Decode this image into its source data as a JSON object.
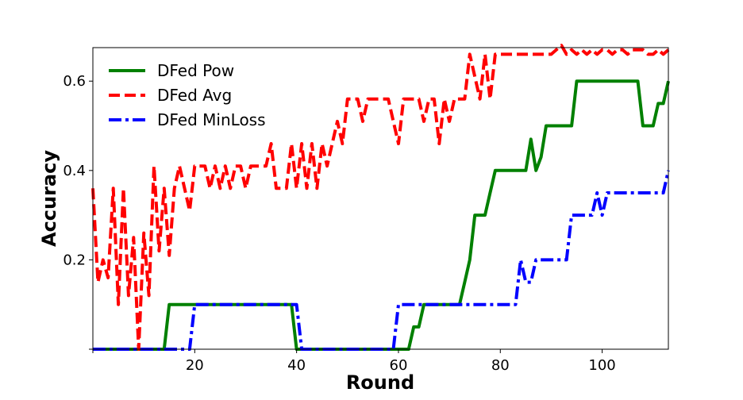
{
  "chart_data": {
    "type": "line",
    "title": "",
    "xlabel": "Round",
    "ylabel": "Accuracy",
    "xlim": [
      0,
      113
    ],
    "ylim": [
      0,
      0.675
    ],
    "xticks": [
      {
        "value": 20,
        "label": "20"
      },
      {
        "value": 40,
        "label": "40"
      },
      {
        "value": 60,
        "label": "60"
      },
      {
        "value": 80,
        "label": "80"
      },
      {
        "value": 100,
        "label": "100"
      }
    ],
    "yticks": [
      {
        "value": 0.2,
        "label": "0.2"
      },
      {
        "value": 0.4,
        "label": "0.4"
      },
      {
        "value": 0.6,
        "label": "0.6"
      }
    ],
    "legend_position": "top-left",
    "grid": false,
    "series": [
      {
        "name": "DFed Pow",
        "color": "#008000",
        "style": "solid",
        "x": [
          0,
          14,
          15,
          39,
          40,
          61,
          62,
          63,
          64,
          65,
          66,
          72,
          73,
          74,
          75,
          77,
          78,
          79,
          84,
          85,
          86,
          87,
          88,
          89,
          94,
          95,
          107,
          108,
          110,
          111,
          112,
          113
        ],
        "y": [
          0,
          0,
          0.1,
          0.1,
          0,
          0,
          0,
          0.05,
          0.05,
          0.1,
          0.1,
          0.1,
          0.15,
          0.2,
          0.3,
          0.3,
          0.35,
          0.4,
          0.4,
          0.4,
          0.47,
          0.4,
          0.43,
          0.5,
          0.5,
          0.6,
          0.6,
          0.5,
          0.5,
          0.55,
          0.55,
          0.6
        ]
      },
      {
        "name": "DFed Avg",
        "color": "#ff0000",
        "style": "dashed",
        "x": [
          0,
          1,
          2,
          3,
          4,
          5,
          6,
          7,
          8,
          9,
          10,
          11,
          12,
          13,
          14,
          15,
          16,
          17,
          18,
          19,
          20,
          21,
          22,
          23,
          24,
          25,
          26,
          27,
          28,
          29,
          30,
          31,
          32,
          33,
          34,
          35,
          36,
          37,
          38,
          39,
          40,
          41,
          42,
          43,
          44,
          45,
          46,
          47,
          48,
          49,
          50,
          51,
          52,
          53,
          54,
          55,
          56,
          57,
          58,
          59,
          60,
          61,
          62,
          63,
          64,
          65,
          66,
          67,
          68,
          69,
          70,
          71,
          72,
          73,
          74,
          75,
          76,
          77,
          78,
          79,
          80,
          81,
          82,
          83,
          84,
          85,
          86,
          87,
          88,
          89,
          90,
          91,
          92,
          93,
          94,
          95,
          96,
          97,
          98,
          99,
          100,
          101,
          102,
          103,
          104,
          105,
          106,
          107,
          108,
          109,
          110,
          111,
          112,
          113
        ],
        "y": [
          0.36,
          0.15,
          0.2,
          0.16,
          0.36,
          0.1,
          0.36,
          0.12,
          0.25,
          0.0,
          0.26,
          0.12,
          0.41,
          0.22,
          0.36,
          0.21,
          0.36,
          0.41,
          0.36,
          0.31,
          0.41,
          0.41,
          0.41,
          0.36,
          0.41,
          0.36,
          0.41,
          0.36,
          0.41,
          0.41,
          0.36,
          0.41,
          0.41,
          0.41,
          0.41,
          0.46,
          0.36,
          0.36,
          0.36,
          0.46,
          0.36,
          0.46,
          0.36,
          0.46,
          0.36,
          0.46,
          0.41,
          0.46,
          0.51,
          0.46,
          0.56,
          0.56,
          0.56,
          0.51,
          0.56,
          0.56,
          0.56,
          0.56,
          0.56,
          0.51,
          0.46,
          0.56,
          0.56,
          0.56,
          0.56,
          0.51,
          0.56,
          0.56,
          0.46,
          0.56,
          0.51,
          0.56,
          0.56,
          0.56,
          0.66,
          0.61,
          0.56,
          0.66,
          0.56,
          0.66,
          0.66,
          0.66,
          0.66,
          0.66,
          0.66,
          0.66,
          0.66,
          0.66,
          0.66,
          0.66,
          0.66,
          0.67,
          0.68,
          0.66,
          0.67,
          0.66,
          0.67,
          0.66,
          0.67,
          0.66,
          0.67,
          0.67,
          0.66,
          0.67,
          0.67,
          0.66,
          0.67,
          0.67,
          0.67,
          0.66,
          0.66,
          0.67,
          0.66,
          0.67
        ]
      },
      {
        "name": "DFed MinLoss",
        "color": "#0000ff",
        "style": "dashdot",
        "x": [
          0,
          18,
          19,
          20,
          40,
          41,
          59,
          60,
          61,
          66,
          82,
          83,
          84,
          85,
          86,
          87,
          88,
          93,
          94,
          95,
          97,
          98,
          99,
          100,
          101,
          112,
          113
        ],
        "y": [
          0,
          0,
          0,
          0.1,
          0.1,
          0,
          0,
          0.1,
          0.1,
          0.1,
          0.1,
          0.1,
          0.2,
          0.15,
          0.15,
          0.2,
          0.2,
          0.2,
          0.3,
          0.3,
          0.3,
          0.3,
          0.35,
          0.3,
          0.35,
          0.35,
          0.4
        ]
      }
    ]
  }
}
